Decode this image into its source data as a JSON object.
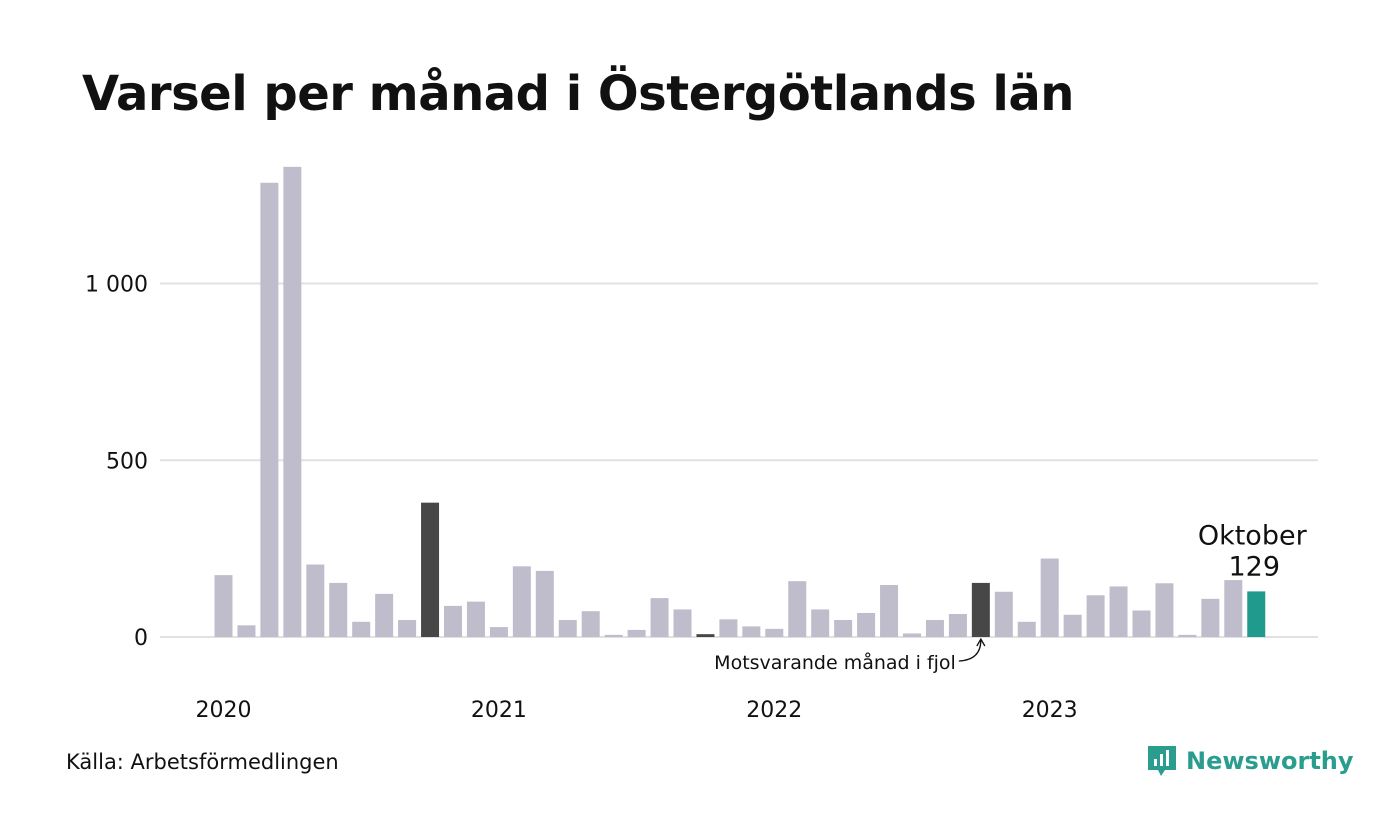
{
  "title": "Varsel per månad i Östergötlands län",
  "source": "Källa: Arbetsförmedlingen",
  "brand": {
    "name": "Newsworthy",
    "icon": "newsworthy-logo-icon",
    "color": "#2a9d8f"
  },
  "chart_data": {
    "type": "bar",
    "title": "Varsel per månad i Östergötlands län",
    "xlabel": "",
    "ylabel": "",
    "ylim": [
      0,
      1330
    ],
    "grid": true,
    "yticks": [
      {
        "value": 0,
        "label": "0"
      },
      {
        "value": 500,
        "label": "500"
      },
      {
        "value": 1000,
        "label": "1 000"
      }
    ],
    "x_tick_labels": [
      {
        "index": 0,
        "label": "2020"
      },
      {
        "index": 12,
        "label": "2021"
      },
      {
        "index": 24,
        "label": "2022"
      },
      {
        "index": 36,
        "label": "2023"
      }
    ],
    "categories": [
      "2020-01",
      "2020-02",
      "2020-03",
      "2020-04",
      "2020-05",
      "2020-06",
      "2020-07",
      "2020-08",
      "2020-09",
      "2020-10",
      "2020-11",
      "2020-12",
      "2021-01",
      "2021-02",
      "2021-03",
      "2021-04",
      "2021-05",
      "2021-06",
      "2021-07",
      "2021-08",
      "2021-09",
      "2021-10",
      "2021-11",
      "2021-12",
      "2022-01",
      "2022-02",
      "2022-03",
      "2022-04",
      "2022-05",
      "2022-06",
      "2022-07",
      "2022-08",
      "2022-09",
      "2022-10",
      "2022-11",
      "2022-12",
      "2023-01",
      "2023-02",
      "2023-03",
      "2023-04",
      "2023-05",
      "2023-06",
      "2023-07",
      "2023-08",
      "2023-09",
      "2023-10"
    ],
    "values": [
      175,
      33,
      1285,
      1330,
      205,
      153,
      43,
      122,
      48,
      380,
      88,
      100,
      28,
      200,
      187,
      48,
      73,
      6,
      20,
      110,
      78,
      8,
      50,
      30,
      23,
      158,
      78,
      48,
      68,
      147,
      10,
      48,
      65,
      153,
      128,
      43,
      222,
      63,
      118,
      143,
      75,
      152,
      6,
      108,
      161,
      129
    ],
    "colors": {
      "default": "#bfbccb",
      "comparison": "#474747",
      "current": "#1f9a8c",
      "grid": "#e1e1e1"
    },
    "comparison_indices": [
      9,
      21,
      33
    ],
    "highlight": {
      "index": 45,
      "label": "Oktober",
      "value_label": "129"
    },
    "annotation": {
      "text": "Motsvarande månad i fjol",
      "target_index": 33
    }
  }
}
